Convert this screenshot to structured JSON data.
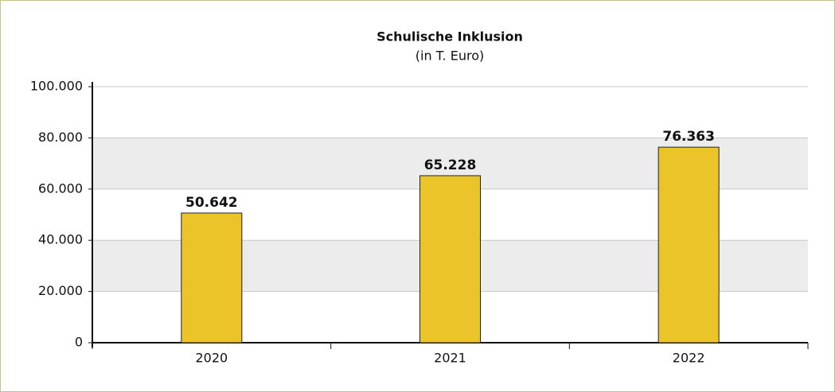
{
  "chart_data": {
    "type": "bar",
    "title": "Schulische Inklusion",
    "subtitle": "(in T. Euro)",
    "categories": [
      "2020",
      "2021",
      "2022"
    ],
    "values": [
      50642,
      65228,
      76363
    ],
    "value_labels": [
      "50.642",
      "65.228",
      "76.363"
    ],
    "color": "#ebc429",
    "ylim": [
      0,
      100000
    ],
    "yticks": [
      0,
      {
        "value": 20000,
        "label": "20.000"
      },
      {
        "value": 40000,
        "label": "40.000"
      },
      {
        "value": 60000,
        "label": "60.000"
      },
      {
        "value": 80000,
        "label": "80.000"
      },
      {
        "value": 100000,
        "label": "100.000"
      }
    ],
    "grid": true
  }
}
